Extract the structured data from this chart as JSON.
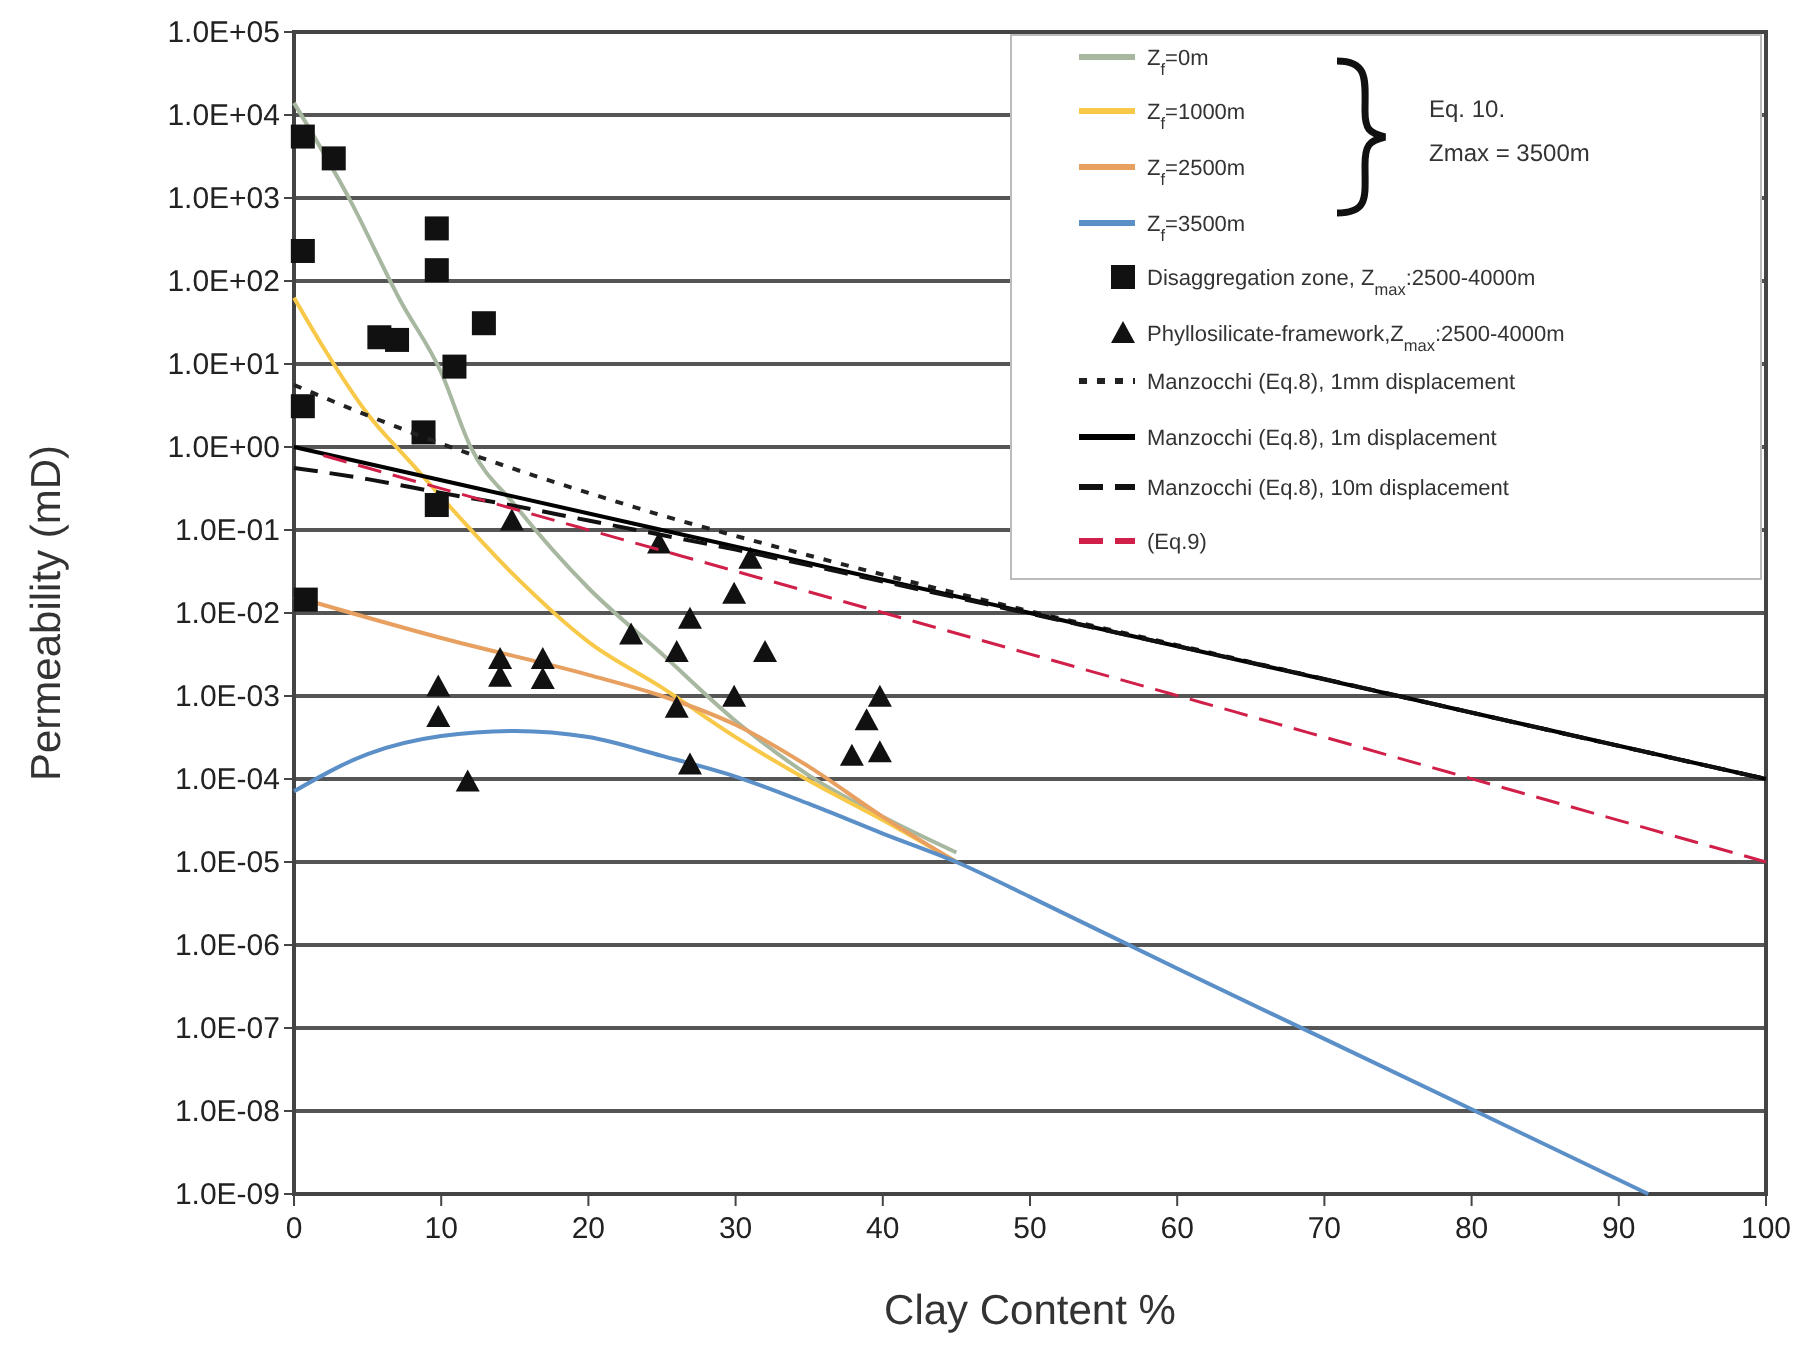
{
  "chart_data": {
    "type": "line",
    "xlabel": "Clay Content %",
    "ylabel": "Permeability (mD)",
    "log": "y",
    "grid": "y",
    "legend": "top right",
    "xlim": [
      0,
      100
    ],
    "xticks": [
      0,
      10,
      20,
      30,
      40,
      50,
      60,
      70,
      80,
      90,
      100
    ],
    "ylim": [
      1e-09,
      100000
    ],
    "yticks": [
      {
        "value": 1e-09,
        "label": "1.0E-09"
      },
      {
        "value": 1e-08,
        "label": "1.0E-08"
      },
      {
        "value": 1e-07,
        "label": "1.0E-07"
      },
      {
        "value": 1e-06,
        "label": "1.0E-06"
      },
      {
        "value": 1e-05,
        "label": "1.0E-05"
      },
      {
        "value": 0.0001,
        "label": "1.0E-04"
      },
      {
        "value": 0.001,
        "label": "1.0E-03"
      },
      {
        "value": 0.01,
        "label": "1.0E-02"
      },
      {
        "value": 0.1,
        "label": "1.0E-01"
      },
      {
        "value": 1,
        "label": "1.0E+00"
      },
      {
        "value": 10,
        "label": "1.0E+01"
      },
      {
        "value": 100,
        "label": "1.0E+02"
      },
      {
        "value": 1000,
        "label": "1.0E+03"
      },
      {
        "value": 10000,
        "label": "1.0E+04"
      },
      {
        "value": 100000,
        "label": "1.0E+05"
      }
    ],
    "annotations": [
      "Eq. 10.",
      "Zmax = 3500m"
    ],
    "series": [
      {
        "name": "Z$_{f}$=0m",
        "line_style": "solid",
        "color": "#a8b8a0",
        "x": [
          0,
          3.8,
          7.2,
          10,
          12,
          15,
          20,
          25,
          30,
          35,
          40,
          45
        ],
        "values": [
          14000,
          950,
          59,
          7.9,
          1,
          0.2,
          0.02,
          0.0032,
          0.0005,
          0.00011,
          3.5e-05,
          1.3e-05
        ]
      },
      {
        "name": "Z$_{f}$=1000m",
        "line_style": "solid",
        "color": "#f8c848",
        "x": [
          0,
          2,
          5,
          8,
          10,
          15,
          20,
          25,
          30,
          35,
          40,
          45
        ],
        "values": [
          63,
          15.8,
          2.5,
          0.63,
          0.25,
          0.028,
          0.0045,
          0.00126,
          0.00032,
          9.5e-05,
          3.2e-05,
          1e-05
        ]
      },
      {
        "name": "Z$_{f}$=2500m",
        "line_style": "solid",
        "color": "#e8a060",
        "x": [
          0,
          10,
          20,
          25,
          30,
          35,
          40,
          45
        ],
        "values": [
          0.0158,
          0.005,
          0.0018,
          0.001,
          0.00045,
          0.00014,
          3.5e-05,
          1e-05
        ]
      },
      {
        "name": "Z$_{f}$=3500m",
        "line_style": "solid",
        "color": "#5b8fc8",
        "x": [
          0,
          5,
          10,
          15,
          20,
          25,
          30,
          35,
          40,
          45,
          50,
          60,
          70,
          80,
          92
        ],
        "values": [
          7.1e-05,
          0.0002,
          0.00033,
          0.00038,
          0.00032,
          0.00019,
          0.000107,
          5e-05,
          2.2e-05,
          1e-05,
          3.8e-06,
          5.2e-07,
          7.4e-08,
          1.05e-08,
          1e-09
        ]
      },
      {
        "name": "Disaggregation zone, Z$_{max}$:2500-4000m",
        "type": "scatter",
        "marker": "square",
        "color": "#111111",
        "x": [
          0.6,
          2.7,
          0.6,
          9.7,
          9.7,
          5.8,
          7,
          12.9,
          10.9,
          0.6,
          8.8,
          9.7,
          0.8
        ],
        "values": [
          5500,
          3000,
          230,
          430,
          135,
          21,
          19.5,
          31,
          9.3,
          3.1,
          1.5,
          0.2,
          0.0145
        ]
      },
      {
        "name": "Phyllosilicate-framework,Z$_{max}$:2500-4000m",
        "type": "scatter",
        "marker": "triangle",
        "color": "#111111",
        "x": [
          14.8,
          24.8,
          31,
          29.9,
          26.9,
          22.9,
          26,
          32,
          14,
          14,
          16.9,
          16.9,
          9.8,
          9.8,
          26,
          29.9,
          26.9,
          11.8,
          39.8,
          38.9,
          37.9,
          39.8
        ],
        "values": [
          0.13,
          0.069,
          0.045,
          0.017,
          0.0085,
          0.0055,
          0.0034,
          0.0034,
          0.0028,
          0.0017,
          0.0028,
          0.0016,
          0.0013,
          0.00056,
          0.00072,
          0.00098,
          0.00015,
          9.3e-05,
          0.00098,
          0.00051,
          0.00019,
          0.00021
        ]
      },
      {
        "name": "Manzocchi (Eq.8), 1mm displacement",
        "line_style": "dotted",
        "color": "#222222",
        "x": [
          0,
          5,
          10,
          15,
          20,
          25,
          30,
          40,
          50,
          60,
          70,
          80,
          100
        ],
        "values": [
          5.6,
          2.4,
          1.1,
          0.54,
          0.28,
          0.15,
          0.085,
          0.029,
          0.0105,
          0.0041,
          0.0016,
          0.00063,
          0.0001
        ]
      },
      {
        "name": "Manzocchi (Eq.8), 1m displacement",
        "line_style": "solid",
        "color": "#000000",
        "x": [
          0,
          25,
          50,
          75,
          100
        ],
        "values": [
          1,
          0.1,
          0.01,
          0.001,
          0.0001
        ]
      },
      {
        "name": "Manzocchi (Eq.8), 10m displacement",
        "line_style": "dashed",
        "color": "#111111",
        "x": [
          0,
          5,
          10,
          15,
          20,
          25,
          30,
          40,
          50,
          60,
          70,
          80,
          100
        ],
        "values": [
          0.56,
          0.41,
          0.28,
          0.195,
          0.13,
          0.087,
          0.058,
          0.024,
          0.0098,
          0.004,
          0.0016,
          0.00063,
          0.0001
        ]
      },
      {
        "name": "(Eq.9)",
        "line_style": "dashed",
        "color": "#d0204a",
        "x": [
          2,
          50,
          100
        ],
        "values": [
          0.79,
          0.0032,
          1e-05
        ]
      }
    ]
  }
}
